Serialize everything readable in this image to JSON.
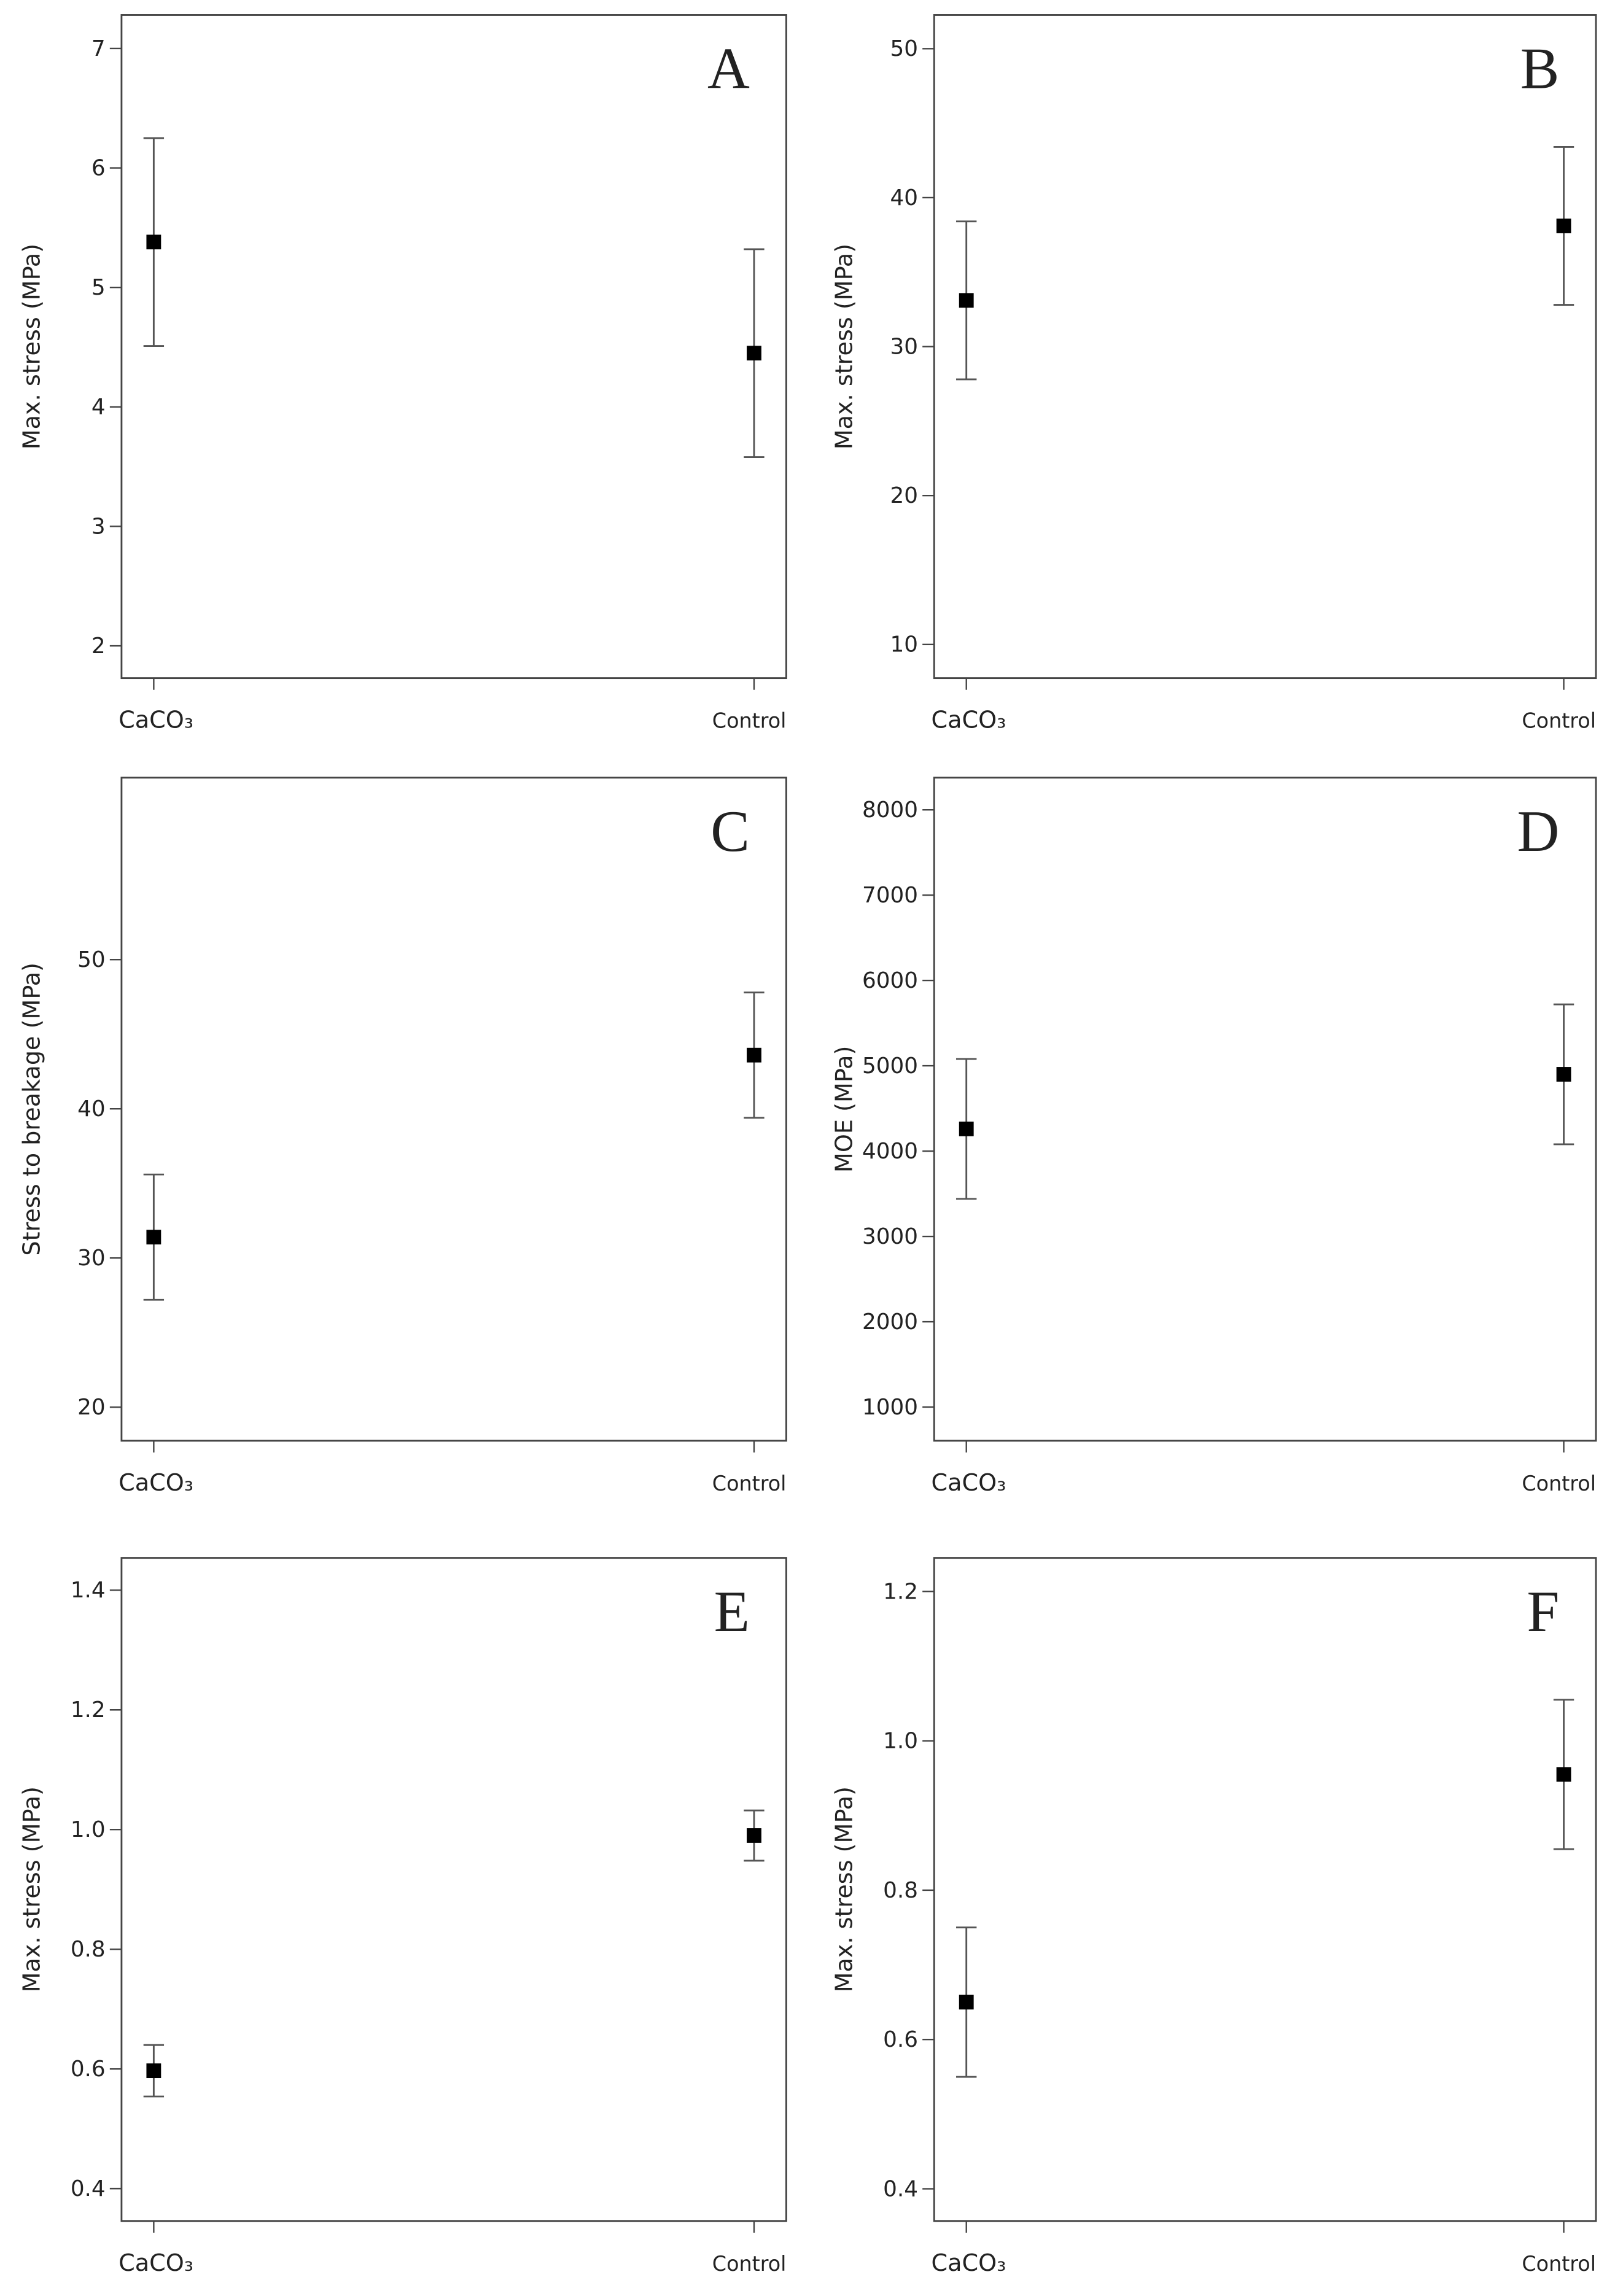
{
  "chart_data": [
    {
      "type": "errorbar",
      "title": "A",
      "y_label": "Max. stress (MPa)",
      "categories": [
        "CaCO₃",
        "Control"
      ],
      "values": [
        5.38,
        4.45
      ],
      "errors": [
        0.87,
        0.87
      ],
      "color": "#000000",
      "ylim": [
        1.73,
        7.28
      ],
      "yticks": [
        2,
        3,
        4,
        5,
        6,
        7
      ]
    },
    {
      "type": "errorbar",
      "title": "B",
      "y_label": "Max. stress (MPa)",
      "categories": [
        "CaCO₃",
        "Control"
      ],
      "values": [
        33.1,
        38.1
      ],
      "errors": [
        5.3,
        5.3
      ],
      "color": "#000000",
      "ylim": [
        7.74,
        52.26
      ],
      "yticks": [
        10,
        20,
        30,
        40,
        50
      ]
    },
    {
      "type": "errorbar",
      "title": "C",
      "y_label": "Stress to breakage (MPa)",
      "categories": [
        "CaCO₃",
        "Control"
      ],
      "values": [
        31.4,
        43.6
      ],
      "errors": [
        4.2,
        4.2
      ],
      "color": "#000000",
      "ylim": [
        17.75,
        62.2
      ],
      "yticks": [
        20,
        30,
        40,
        50
      ]
    },
    {
      "type": "errorbar",
      "title": "D",
      "y_label": "MOE (MPa)",
      "categories": [
        "CaCO₃",
        "Control"
      ],
      "values": [
        4260,
        4900
      ],
      "errors": [
        820,
        820
      ],
      "color": "#000000",
      "ylim": [
        605,
        8377
      ],
      "yticks": [
        1000,
        2000,
        3000,
        4000,
        5000,
        6000,
        7000,
        8000
      ]
    },
    {
      "type": "errorbar",
      "title": "E",
      "y_label": "Max. stress (MPa)",
      "categories": [
        "CaCO₃",
        "Control"
      ],
      "values": [
        0.597,
        0.99
      ],
      "errors": [
        0.043,
        0.042
      ],
      "color": "#000000",
      "ylim": [
        0.346,
        1.454
      ],
      "yticks": [
        0.4,
        0.6,
        0.8,
        1.0,
        1.2,
        1.4
      ]
    },
    {
      "type": "errorbar",
      "title": "F",
      "y_label": "Max. stress (MPa)",
      "categories": [
        "CaCO₃",
        "Control"
      ],
      "values": [
        0.65,
        0.955
      ],
      "errors": [
        0.1,
        0.1
      ],
      "color": "#000000",
      "ylim": [
        0.357,
        1.245
      ],
      "yticks": [
        0.4,
        0.6,
        0.8,
        1.0,
        1.2
      ]
    }
  ]
}
